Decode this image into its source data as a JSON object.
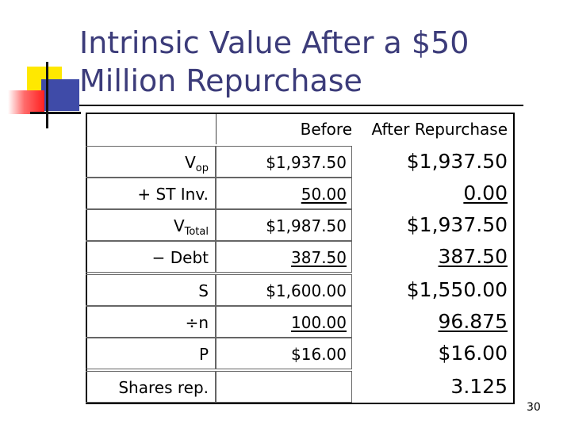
{
  "title": {
    "line1": "Intrinsic Value After a $50",
    "line2": "Million Repurchase"
  },
  "table": {
    "header_before": "Before",
    "header_after": "After Repurchase",
    "rows": [
      {
        "label_main": "V",
        "label_sub": "op",
        "before": "$1,937.50",
        "after": "$1,937.50",
        "before_underline": false,
        "after_underline": false
      },
      {
        "label_main": "+ ST Inv.",
        "label_sub": "",
        "before": "50.00",
        "after": "0.00",
        "before_underline": true,
        "after_underline": true
      },
      {
        "label_main": "V",
        "label_sub": "Total",
        "before": "$1,987.50",
        "after": "$1,937.50",
        "before_underline": false,
        "after_underline": false
      },
      {
        "label_main": "− Debt",
        "label_sub": "",
        "before": "387.50",
        "after": "387.50",
        "before_underline": true,
        "after_underline": true
      },
      {
        "label_main": "S",
        "label_sub": "",
        "before": "$1,600.00",
        "after": "$1,550.00",
        "before_underline": false,
        "after_underline": false
      },
      {
        "label_main": "÷n",
        "label_sub": "",
        "before": "100.00",
        "after": "96.875",
        "before_underline": true,
        "after_underline": true
      },
      {
        "label_main": "P",
        "label_sub": "",
        "before": "$16.00",
        "after": "$16.00",
        "before_underline": false,
        "after_underline": false
      },
      {
        "label_main": "Shares rep.",
        "label_sub": "",
        "before": "",
        "after": "3.125",
        "before_underline": false,
        "after_underline": false
      }
    ]
  },
  "page_number": "30",
  "colors": {
    "title": "#3c3c7a",
    "logo_yellow": "#ffe800",
    "logo_blue": "#3f4ba8",
    "logo_red": "#ff2020"
  }
}
